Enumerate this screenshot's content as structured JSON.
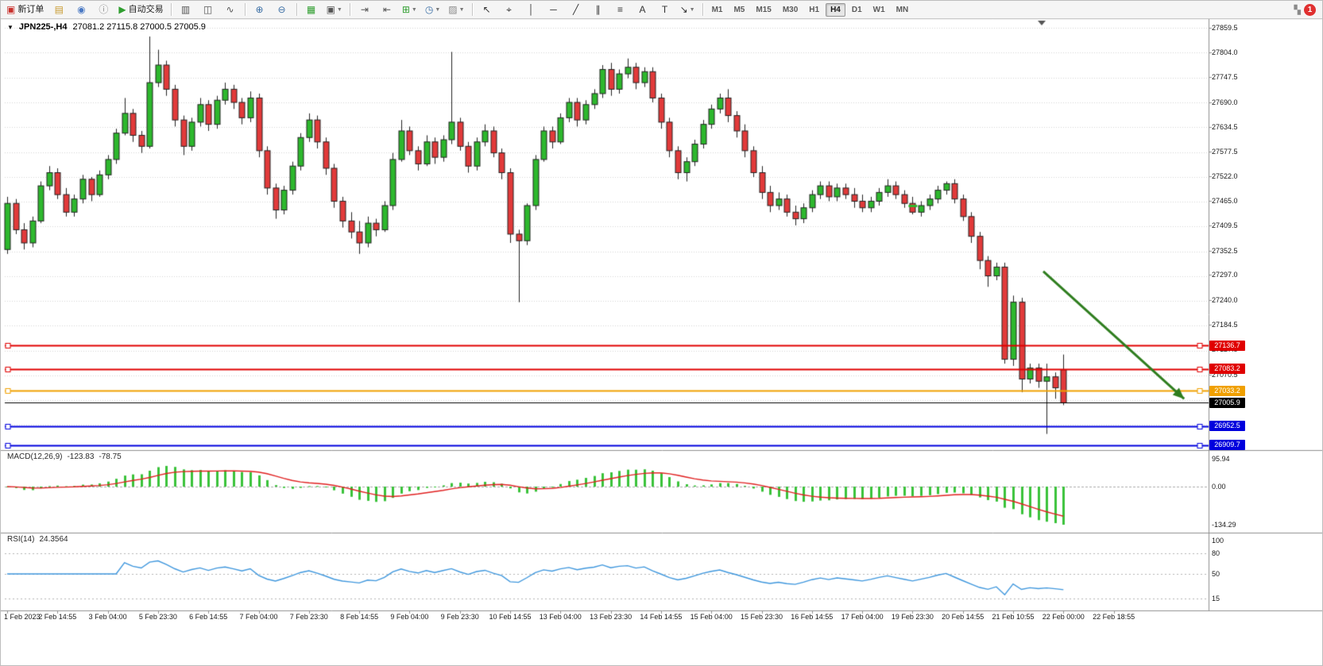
{
  "toolbar": {
    "buttons": [
      {
        "name": "new-order-button",
        "glyph": "▣",
        "glyph_color": "#c9302c",
        "label": "新订单"
      },
      {
        "name": "chart-profiles-icon",
        "glyph": "▤",
        "glyph_color": "#c99a2e"
      },
      {
        "name": "market-watch-icon",
        "glyph": "◉",
        "glyph_color": "#4a79c4"
      },
      {
        "name": "data-window-icon",
        "glyph": "ⓘ",
        "glyph_color": "#888888"
      },
      {
        "name": "autotrading-button",
        "glyph": "▶",
        "glyph_color": "#2f9e2f",
        "label": "自动交易"
      },
      {
        "sep": true
      },
      {
        "name": "bar-chart-type-icon",
        "glyph": "▥",
        "glyph_color": "#555555"
      },
      {
        "name": "candlestick-chart-type-icon",
        "glyph": "◫",
        "glyph_color": "#555555"
      },
      {
        "name": "line-chart-type-icon",
        "glyph": "∿",
        "glyph_color": "#555555"
      },
      {
        "sep": true
      },
      {
        "name": "zoom-in-icon",
        "glyph": "⊕",
        "glyph_color": "#3a6ea5"
      },
      {
        "name": "zoom-out-icon",
        "glyph": "⊖",
        "glyph_color": "#3a6ea5"
      },
      {
        "sep": true
      },
      {
        "name": "tile-windows-icon",
        "glyph": "▦",
        "glyph_color": "#2f9e2f"
      },
      {
        "name": "new-chart-icon",
        "glyph": "▣",
        "glyph_color": "#555555",
        "dropdown": true
      },
      {
        "sep": true
      },
      {
        "name": "auto-scroll-icon",
        "glyph": "⇥",
        "glyph_color": "#555555"
      },
      {
        "name": "chart-shift-icon",
        "glyph": "⇤",
        "glyph_color": "#555555"
      },
      {
        "name": "indicators-icon",
        "glyph": "⊞",
        "glyph_color": "#2f9e2f",
        "dropdown": true
      },
      {
        "name": "periods-icon",
        "glyph": "◷",
        "glyph_color": "#3a6ea5",
        "dropdown": true
      },
      {
        "name": "templates-icon",
        "glyph": "▨",
        "glyph_color": "#8a8a8a",
        "dropdown": true
      },
      {
        "sep": true
      },
      {
        "name": "cursor-icon",
        "glyph": "↖",
        "glyph_color": "#333333"
      },
      {
        "name": "crosshair-icon",
        "glyph": "⌖",
        "glyph_color": "#333333"
      },
      {
        "name": "vertical-line-icon",
        "glyph": "│",
        "glyph_color": "#333333"
      },
      {
        "name": "horizontal-line-icon",
        "glyph": "─",
        "glyph_color": "#333333"
      },
      {
        "name": "trendline-icon",
        "glyph": "╱",
        "glyph_color": "#333333"
      },
      {
        "name": "channel-icon",
        "glyph": "∥",
        "glyph_color": "#333333"
      },
      {
        "name": "fibonacci-icon",
        "glyph": "≡",
        "glyph_color": "#333333"
      },
      {
        "name": "text-icon",
        "glyph": "A",
        "glyph_color": "#333333"
      },
      {
        "name": "label-icon",
        "glyph": "T",
        "glyph_color": "#333333"
      },
      {
        "name": "shapes-icon",
        "glyph": "↘",
        "glyph_color": "#333333",
        "dropdown": true
      },
      {
        "sep": true
      }
    ],
    "timeframes": [
      {
        "label": "M1"
      },
      {
        "label": "M5"
      },
      {
        "label": "M15"
      },
      {
        "label": "M30"
      },
      {
        "label": "H1"
      },
      {
        "label": "H4",
        "selected": true
      },
      {
        "label": "D1"
      },
      {
        "label": "W1"
      },
      {
        "label": "MN"
      }
    ],
    "notification_count": "1"
  },
  "chart_header": {
    "symbol_period": "JPN225-,H4",
    "ohlc_text": "27081.2 27115.8 27000.5 27005.9"
  },
  "chart_data": {
    "type": "candlestick",
    "symbol": "JPN225-",
    "timeframe": "H4",
    "last_ohlc": {
      "open": 27081.2,
      "high": 27115.8,
      "low": 27000.5,
      "close": 27005.9
    },
    "y_axis_labels": [
      "27859.5",
      "27804.0",
      "27747.5",
      "27690.0",
      "27634.5",
      "27577.5",
      "27522.0",
      "27465.0",
      "27409.5",
      "27352.5",
      "27297.0",
      "27240.0",
      "27184.5",
      "27127.5",
      "27070.5"
    ],
    "x_labels": [
      "1 Feb 2023",
      "2 Feb 14:55",
      "3 Feb 04:00",
      "5 Feb 23:30",
      "6 Feb 14:55",
      "7 Feb 04:00",
      "7 Feb 23:30",
      "8 Feb 14:55",
      "9 Feb 04:00",
      "9 Feb 23:30",
      "10 Feb 14:55",
      "13 Feb 04:00",
      "13 Feb 23:30",
      "14 Feb 14:55",
      "15 Feb 04:00",
      "15 Feb 23:30",
      "16 Feb 14:55",
      "17 Feb 04:00",
      "19 Feb 23:30",
      "20 Feb 14:55",
      "21 Feb 10:55",
      "22 Feb 00:00",
      "22 Feb 18:55"
    ],
    "up_color": "#2db82d",
    "down_color": "#e23a3a",
    "ohlc": [
      [
        27355,
        27475,
        27345,
        27460
      ],
      [
        27460,
        27470,
        27390,
        27400
      ],
      [
        27400,
        27415,
        27355,
        27370
      ],
      [
        27370,
        27430,
        27360,
        27420
      ],
      [
        27420,
        27510,
        27415,
        27500
      ],
      [
        27500,
        27545,
        27490,
        27530
      ],
      [
        27530,
        27540,
        27470,
        27480
      ],
      [
        27480,
        27495,
        27430,
        27440
      ],
      [
        27440,
        27480,
        27430,
        27470
      ],
      [
        27470,
        27525,
        27460,
        27515
      ],
      [
        27515,
        27520,
        27465,
        27480
      ],
      [
        27480,
        27535,
        27475,
        27525
      ],
      [
        27525,
        27570,
        27515,
        27560
      ],
      [
        27560,
        27630,
        27550,
        27620
      ],
      [
        27620,
        27700,
        27615,
        27665
      ],
      [
        27665,
        27675,
        27600,
        27615
      ],
      [
        27615,
        27625,
        27575,
        27590
      ],
      [
        27590,
        27840,
        27585,
        27735
      ],
      [
        27735,
        27810,
        27725,
        27775
      ],
      [
        27775,
        27785,
        27705,
        27720
      ],
      [
        27720,
        27730,
        27635,
        27650
      ],
      [
        27650,
        27660,
        27570,
        27590
      ],
      [
        27590,
        27655,
        27580,
        27645
      ],
      [
        27645,
        27700,
        27635,
        27685
      ],
      [
        27685,
        27695,
        27625,
        27640
      ],
      [
        27640,
        27705,
        27630,
        27695
      ],
      [
        27695,
        27735,
        27685,
        27720
      ],
      [
        27720,
        27730,
        27675,
        27690
      ],
      [
        27690,
        27700,
        27640,
        27655
      ],
      [
        27655,
        27715,
        27645,
        27700
      ],
      [
        27700,
        27710,
        27565,
        27580
      ],
      [
        27580,
        27590,
        27480,
        27495
      ],
      [
        27495,
        27505,
        27425,
        27445
      ],
      [
        27445,
        27500,
        27435,
        27490
      ],
      [
        27490,
        27555,
        27480,
        27545
      ],
      [
        27545,
        27620,
        27535,
        27610
      ],
      [
        27610,
        27665,
        27600,
        27650
      ],
      [
        27650,
        27660,
        27585,
        27600
      ],
      [
        27600,
        27610,
        27525,
        27540
      ],
      [
        27540,
        27550,
        27450,
        27465
      ],
      [
        27465,
        27475,
        27405,
        27420
      ],
      [
        27420,
        27440,
        27380,
        27395
      ],
      [
        27395,
        27420,
        27345,
        27370
      ],
      [
        27370,
        27430,
        27360,
        27415
      ],
      [
        27415,
        27425,
        27385,
        27400
      ],
      [
        27400,
        27465,
        27395,
        27455
      ],
      [
        27455,
        27575,
        27445,
        27560
      ],
      [
        27560,
        27650,
        27555,
        27625
      ],
      [
        27625,
        27635,
        27570,
        27580
      ],
      [
        27580,
        27590,
        27535,
        27550
      ],
      [
        27550,
        27615,
        27545,
        27600
      ],
      [
        27600,
        27610,
        27550,
        27565
      ],
      [
        27565,
        27615,
        27555,
        27605
      ],
      [
        27605,
        27805,
        27595,
        27645
      ],
      [
        27645,
        27655,
        27580,
        27590
      ],
      [
        27590,
        27600,
        27530,
        27545
      ],
      [
        27545,
        27610,
        27535,
        27600
      ],
      [
        27600,
        27640,
        27590,
        27625
      ],
      [
        27625,
        27635,
        27565,
        27575
      ],
      [
        27575,
        27585,
        27515,
        27530
      ],
      [
        27530,
        27540,
        27370,
        27390
      ],
      [
        27390,
        27400,
        27235,
        27375
      ],
      [
        27375,
        27460,
        27365,
        27455
      ],
      [
        27455,
        27570,
        27445,
        27560
      ],
      [
        27560,
        27635,
        27555,
        27625
      ],
      [
        27625,
        27635,
        27585,
        27600
      ],
      [
        27600,
        27665,
        27595,
        27655
      ],
      [
        27655,
        27700,
        27645,
        27690
      ],
      [
        27690,
        27700,
        27635,
        27650
      ],
      [
        27650,
        27695,
        27640,
        27685
      ],
      [
        27685,
        27720,
        27675,
        27710
      ],
      [
        27710,
        27775,
        27700,
        27765
      ],
      [
        27765,
        27780,
        27705,
        27720
      ],
      [
        27720,
        27765,
        27710,
        27755
      ],
      [
        27755,
        27790,
        27745,
        27770
      ],
      [
        27770,
        27780,
        27720,
        27735
      ],
      [
        27735,
        27770,
        27725,
        27760
      ],
      [
        27760,
        27770,
        27690,
        27700
      ],
      [
        27700,
        27710,
        27630,
        27645
      ],
      [
        27645,
        27655,
        27565,
        27580
      ],
      [
        27580,
        27590,
        27515,
        27530
      ],
      [
        27530,
        27565,
        27510,
        27555
      ],
      [
        27555,
        27605,
        27545,
        27595
      ],
      [
        27595,
        27650,
        27585,
        27640
      ],
      [
        27640,
        27685,
        27630,
        27675
      ],
      [
        27675,
        27710,
        27665,
        27700
      ],
      [
        27700,
        27720,
        27645,
        27660
      ],
      [
        27660,
        27670,
        27610,
        27625
      ],
      [
        27625,
        27640,
        27565,
        27580
      ],
      [
        27580,
        27590,
        27520,
        27530
      ],
      [
        27530,
        27545,
        27470,
        27485
      ],
      [
        27485,
        27500,
        27440,
        27455
      ],
      [
        27455,
        27485,
        27445,
        27470
      ],
      [
        27470,
        27480,
        27430,
        27440
      ],
      [
        27440,
        27455,
        27410,
        27425
      ],
      [
        27425,
        27460,
        27415,
        27450
      ],
      [
        27450,
        27490,
        27440,
        27480
      ],
      [
        27480,
        27510,
        27470,
        27500
      ],
      [
        27500,
        27510,
        27465,
        27475
      ],
      [
        27475,
        27505,
        27465,
        27495
      ],
      [
        27495,
        27505,
        27470,
        27480
      ],
      [
        27480,
        27495,
        27450,
        27465
      ],
      [
        27465,
        27480,
        27440,
        27450
      ],
      [
        27450,
        27475,
        27440,
        27465
      ],
      [
        27465,
        27495,
        27455,
        27485
      ],
      [
        27485,
        27515,
        27475,
        27500
      ],
      [
        27500,
        27510,
        27470,
        27480
      ],
      [
        27480,
        27490,
        27450,
        27460
      ],
      [
        27460,
        27475,
        27435,
        27440
      ],
      [
        27440,
        27465,
        27430,
        27455
      ],
      [
        27455,
        27480,
        27445,
        27470
      ],
      [
        27470,
        27500,
        27460,
        27490
      ],
      [
        27490,
        27510,
        27480,
        27505
      ],
      [
        27505,
        27515,
        27460,
        27470
      ],
      [
        27470,
        27480,
        27420,
        27430
      ],
      [
        27430,
        27440,
        27370,
        27385
      ],
      [
        27385,
        27395,
        27310,
        27330
      ],
      [
        27330,
        27340,
        27270,
        27295
      ],
      [
        27295,
        27325,
        27285,
        27315
      ],
      [
        27315,
        27325,
        27095,
        27105
      ],
      [
        27105,
        27250,
        27090,
        27235
      ],
      [
        27235,
        27245,
        27030,
        27060
      ],
      [
        27060,
        27095,
        27050,
        27085
      ],
      [
        27085,
        27095,
        27040,
        27055
      ],
      [
        27055,
        27095,
        26935,
        27065
      ],
      [
        27065,
        27075,
        27015,
        27040
      ],
      [
        27081.2,
        27115.8,
        27000.5,
        27005.9
      ]
    ],
    "horizontal_lines": [
      {
        "name": "resistance-line-1",
        "price": 27136.7,
        "label": "27136.7",
        "color": "#e00000"
      },
      {
        "name": "resistance-line-2",
        "price": 27083.2,
        "label": "27083.2",
        "color": "#e00000"
      },
      {
        "name": "pivot-line",
        "price": 27033.2,
        "label": "27033.2",
        "color": "#f0a000"
      },
      {
        "name": "current-price-line",
        "price": 27005.9,
        "label": "27005.9",
        "color": "#000000",
        "is_price": true
      },
      {
        "name": "support-line-1",
        "price": 26952.5,
        "label": "26952.5",
        "color": "#0000dd"
      },
      {
        "name": "support-line-2",
        "price": 26909.7,
        "label": "26909.7",
        "color": "#0000dd"
      }
    ],
    "indicators": [
      {
        "type": "MACD",
        "params": [
          12,
          26,
          9
        ],
        "display": "MACD(12,26,9)",
        "value_text": "-123.83",
        "signal_text": "-78.75",
        "axis_labels": [
          "95.94",
          "0.00",
          "-134.29"
        ],
        "histogram_color": "#3ac23a",
        "signal_color": "#e02020"
      },
      {
        "type": "RSI",
        "params": [
          14
        ],
        "display": "RSI(14)",
        "value_text": "24.3564",
        "axis_labels": [
          "100",
          "80",
          "50",
          "15"
        ],
        "levels": [
          80,
          50,
          15
        ],
        "line_color": "#3f97dd"
      }
    ],
    "annotations": [
      {
        "type": "trend-arrow",
        "from_bar": 123.6,
        "from_price": 27305,
        "to_bar": 140.4,
        "to_price": 27015,
        "color": "#2e7d1e"
      },
      {
        "type": "dash-mark",
        "bar": 108,
        "price": 27455,
        "color": "#2eb82e"
      }
    ]
  }
}
